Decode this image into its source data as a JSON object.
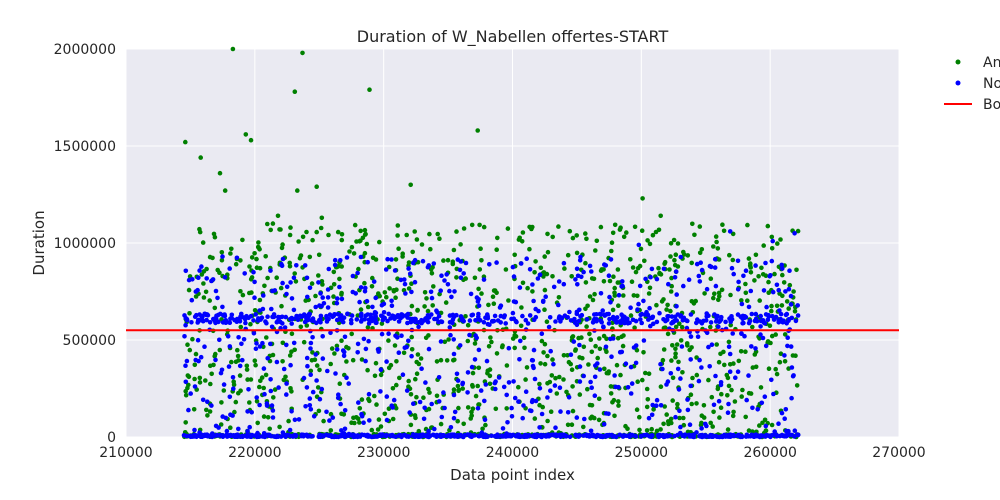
{
  "chart_data": {
    "type": "scatter",
    "title": "Duration of W_Nabellen offertes-START",
    "xlabel": "Data point index",
    "ylabel": "Duration",
    "xlim": [
      210000,
      270000
    ],
    "ylim": [
      0,
      2000000
    ],
    "xticks": [
      "210000",
      "220000",
      "230000",
      "240000",
      "250000",
      "260000",
      "270000"
    ],
    "yticks": [
      "0",
      "500000",
      "1000000",
      "1500000",
      "2000000"
    ],
    "grid": true,
    "legend_position": "outside-right",
    "colors": {
      "anomaly": "#008000",
      "normal": "#0000ff",
      "boundary": "#ff0000",
      "background": "#eaeaf2",
      "grid": "#ffffff"
    },
    "series": [
      {
        "name": "An",
        "kind": "points",
        "color": "#008000",
        "x_range": [
          214500,
          262200
        ],
        "count_approx": 1400,
        "notable_points": [
          {
            "x": 214600,
            "y": 1520000
          },
          {
            "x": 215800,
            "y": 1440000
          },
          {
            "x": 216900,
            "y": 1030000
          },
          {
            "x": 217300,
            "y": 1360000
          },
          {
            "x": 217700,
            "y": 1270000
          },
          {
            "x": 218300,
            "y": 2000000
          },
          {
            "x": 219300,
            "y": 1560000
          },
          {
            "x": 219700,
            "y": 1530000
          },
          {
            "x": 221400,
            "y": 1100000
          },
          {
            "x": 221800,
            "y": 1140000
          },
          {
            "x": 223100,
            "y": 1780000
          },
          {
            "x": 223300,
            "y": 1270000
          },
          {
            "x": 223700,
            "y": 1980000
          },
          {
            "x": 224800,
            "y": 1290000
          },
          {
            "x": 225200,
            "y": 1130000
          },
          {
            "x": 228900,
            "y": 1790000
          },
          {
            "x": 231100,
            "y": 1090000
          },
          {
            "x": 232100,
            "y": 1300000
          },
          {
            "x": 237300,
            "y": 1580000
          },
          {
            "x": 250100,
            "y": 1230000
          },
          {
            "x": 250900,
            "y": 1040000
          },
          {
            "x": 251500,
            "y": 1140000
          }
        ]
      },
      {
        "name": "No",
        "kind": "points",
        "color": "#0000ff",
        "x_range": [
          214500,
          262200
        ],
        "count_approx": 1600,
        "notable_points": [
          {
            "x": 238200,
            "y": 890000
          },
          {
            "x": 249800,
            "y": 990000
          },
          {
            "x": 256900,
            "y": 1060000
          },
          {
            "x": 260200,
            "y": 1010000
          },
          {
            "x": 261900,
            "y": 1050000
          }
        ]
      },
      {
        "name": "Bo",
        "kind": "hline",
        "color": "#ff0000",
        "y": 550000
      }
    ]
  }
}
